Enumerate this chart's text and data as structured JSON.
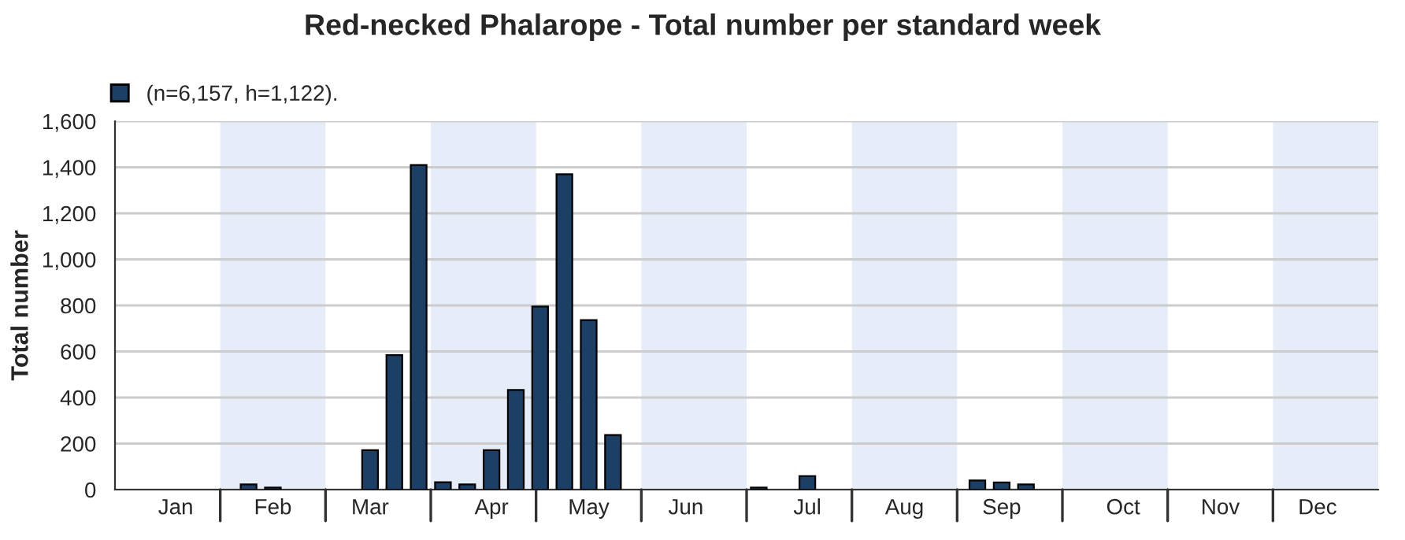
{
  "chart_data": {
    "type": "bar",
    "title": "Red-necked Phalarope - Total number per standard week",
    "ylabel": "Total number",
    "categories": [
      null,
      null,
      "Jan",
      null,
      null,
      null,
      "Feb",
      null,
      null,
      null,
      "Mar",
      null,
      null,
      null,
      null,
      "Apr",
      null,
      null,
      null,
      "May",
      null,
      null,
      null,
      "Jun",
      null,
      null,
      null,
      null,
      "Jul",
      null,
      null,
      null,
      "Aug",
      null,
      null,
      null,
      "Sep",
      null,
      null,
      null,
      null,
      "Oct",
      null,
      null,
      null,
      "Nov",
      null,
      null,
      null,
      "Dec",
      null,
      null
    ],
    "series": [
      {
        "name": "(n=6,157, h=1,122).",
        "color": "#1c3f66",
        "values": [
          null,
          null,
          null,
          null,
          null,
          23,
          9,
          null,
          null,
          null,
          171,
          584,
          1410,
          32,
          23,
          171,
          433,
          795,
          1370,
          736,
          237,
          null,
          null,
          null,
          null,
          null,
          9,
          null,
          59,
          null,
          null,
          null,
          null,
          null,
          null,
          40,
          31,
          23,
          null,
          null,
          null,
          null,
          null,
          null,
          null,
          null,
          null,
          null,
          null,
          null,
          null,
          null
        ]
      }
    ],
    "ylim": [
      0,
      1600
    ],
    "yticks": [
      {
        "value": 0,
        "label": "0"
      },
      {
        "value": 200,
        "label": "200"
      },
      {
        "value": 400,
        "label": "400"
      },
      {
        "value": 600,
        "label": "600"
      },
      {
        "value": 800,
        "label": "800"
      },
      {
        "value": 1000,
        "label": "1,000"
      },
      {
        "value": 1200,
        "label": "1,200"
      },
      {
        "value": 1400,
        "label": "1,400"
      },
      {
        "value": 1600,
        "label": "1,600"
      }
    ],
    "grid": "y",
    "legend": "top left"
  }
}
